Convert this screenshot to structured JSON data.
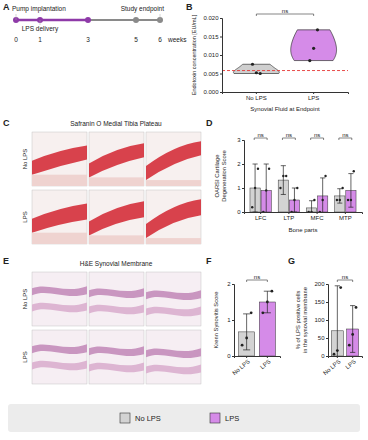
{
  "figure": {
    "panel_labels": [
      "A",
      "B",
      "C",
      "D",
      "E",
      "F",
      "G"
    ],
    "timeline": {
      "weeks": [
        0,
        1,
        3,
        5,
        6
      ],
      "unit": "weeks",
      "lps_period": [
        0,
        3
      ],
      "events": [
        {
          "label": "Pump implantation",
          "week": 0
        },
        {
          "label": "LPS delivery",
          "week": 1
        },
        {
          "label": "Study endpoint",
          "week": 6
        }
      ]
    },
    "images": [
      {
        "title": "Safranin O Medial Tibia Plateau",
        "rows": [
          "No LPS",
          "LPS"
        ]
      },
      {
        "title": "H&E Synovial Membrane",
        "rows": [
          "No LPS",
          "LPS"
        ]
      }
    ]
  },
  "chart_data": [
    {
      "type": "violin",
      "y_label": "Endotoxin concentration [EU/mL]",
      "x_label": "Synovial Fluid at Endpoint",
      "categories": [
        "No LPS",
        "LPS"
      ],
      "colors": [
        "#cfcfcf",
        "#d58be8"
      ],
      "values": [
        [
          0.0075,
          0.0052,
          0.005
        ],
        [
          0.0085,
          0.0118,
          0.0168
        ]
      ],
      "reference_line": 0.0058,
      "annotation": "ns",
      "ylim": [
        0,
        0.02
      ],
      "yticks": [
        {
          "value": 0,
          "label": "0.000"
        },
        {
          "value": 0.005,
          "label": "0.005"
        },
        {
          "value": 0.01,
          "label": "0.010"
        },
        {
          "value": 0.015,
          "label": "0.015"
        },
        {
          "value": 0.02,
          "label": "0.020"
        }
      ]
    },
    {
      "type": "bar",
      "y_label": [
        "OARSI Cartilage",
        "Degeneration Score"
      ],
      "x_label": "Bone parts",
      "categories": [
        "LFC",
        "LTP",
        "MFC",
        "MTP"
      ],
      "series": [
        {
          "name": "No LPS",
          "color": "#d3d3d3",
          "values": [
            1.0,
            1.33,
            0.17,
            0.67
          ],
          "errors": [
            1.0,
            0.6,
            0.3,
            0.3
          ],
          "points": [
            [
              0.2,
              1.0,
              1.8
            ],
            [
              1.0,
              1.5,
              1.5
            ],
            [
              0,
              0,
              0.5
            ],
            [
              0.5,
              0.5,
              1.0
            ]
          ]
        },
        {
          "name": "LPS",
          "color": "#d58be8",
          "values": [
            0.9,
            0.5,
            0.67,
            0.9
          ],
          "errors": [
            1.1,
            0.5,
            0.75,
            0.7
          ],
          "points": [
            [
              0,
              0.9,
              1.8
            ],
            [
              0,
              0.5,
              1.0
            ],
            [
              0,
              0.5,
              1.5
            ],
            [
              0.5,
              0.5,
              1.7
            ]
          ]
        }
      ],
      "annotations": [
        "ns",
        "ns",
        "ns",
        "ns"
      ],
      "ylim": [
        0,
        3
      ],
      "yticks": [
        0,
        1,
        2,
        3
      ]
    },
    {
      "type": "bar",
      "y_label": [
        "Krenn Synovitis Score"
      ],
      "categories": [
        "No LPS",
        "LPS"
      ],
      "colors": [
        "#d3d3d3",
        "#d58be8"
      ],
      "values": [
        0.67,
        1.5
      ],
      "errors": [
        0.5,
        0.3
      ],
      "points": [
        [
          0.3,
          0.5,
          1.2
        ],
        [
          1.2,
          1.5,
          1.8
        ]
      ],
      "annotation": "ns",
      "ylim": [
        0,
        2
      ],
      "yticks": [
        0,
        1,
        2
      ]
    },
    {
      "type": "bar",
      "y_label": [
        "% of LPS positive cells",
        "in the synovial membrane"
      ],
      "categories": [
        "No LPS",
        "LPS"
      ],
      "colors": [
        "#d3d3d3",
        "#d58be8"
      ],
      "values": [
        70,
        75
      ],
      "errors": [
        125,
        65
      ],
      "points": [
        [
          5,
          15,
          190
        ],
        [
          30,
          60,
          135
        ]
      ],
      "annotation": "ns",
      "ylim": [
        0,
        200
      ],
      "yticks": [
        0,
        50,
        100,
        150,
        200
      ]
    }
  ]
}
